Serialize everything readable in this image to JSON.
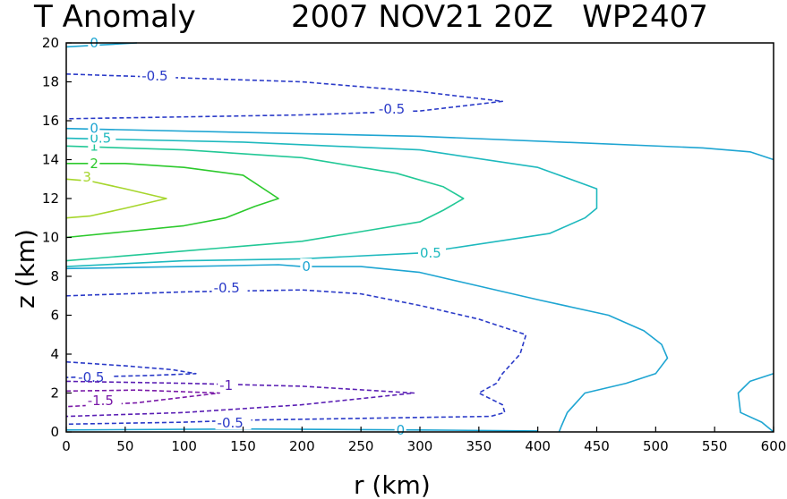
{
  "chart_data": {
    "type": "contour",
    "title_left": "T Anomaly",
    "title_right": "2007 NOV21 20Z   WP2407",
    "xlabel": "r (km)",
    "ylabel": "z (km)",
    "xlim": [
      0,
      600
    ],
    "ylim": [
      0,
      20
    ],
    "xticks": [
      0,
      50,
      100,
      150,
      200,
      250,
      300,
      350,
      400,
      450,
      500,
      550,
      600
    ],
    "yticks": [
      0,
      2,
      4,
      6,
      8,
      10,
      12,
      14,
      16,
      18,
      20
    ],
    "contours": [
      {
        "level": "3",
        "color": "#a6d62c",
        "dashed": false,
        "label_at": [
          14,
          13.1
        ],
        "points": [
          [
            0,
            13.0
          ],
          [
            20,
            12.9
          ],
          [
            50,
            12.5
          ],
          [
            85,
            12.0
          ],
          [
            50,
            11.5
          ],
          [
            20,
            11.1
          ],
          [
            0,
            11.0
          ]
        ]
      },
      {
        "level": "2",
        "color": "#2cc92c",
        "dashed": false,
        "label_at": [
          20,
          13.8
        ],
        "points": [
          [
            0,
            13.8
          ],
          [
            50,
            13.8
          ],
          [
            100,
            13.6
          ],
          [
            150,
            13.2
          ],
          [
            180,
            12.0
          ],
          [
            160,
            11.6
          ],
          [
            135,
            11.0
          ],
          [
            100,
            10.6
          ],
          [
            50,
            10.3
          ],
          [
            0,
            10.0
          ]
        ]
      },
      {
        "level": "1",
        "color": "#22c896",
        "dashed": false,
        "label_at": [
          20,
          14.7
        ],
        "points": [
          [
            0,
            14.7
          ],
          [
            100,
            14.5
          ],
          [
            200,
            14.1
          ],
          [
            280,
            13.3
          ],
          [
            320,
            12.6
          ],
          [
            337,
            12.0
          ],
          [
            320,
            11.4
          ],
          [
            300,
            10.8
          ],
          [
            250,
            10.3
          ],
          [
            200,
            9.8
          ],
          [
            100,
            9.3
          ],
          [
            0,
            8.8
          ]
        ]
      },
      {
        "level": "0.5",
        "color": "#1eb9be",
        "dashed": false,
        "label_at": [
          20,
          15.1
        ],
        "points": [
          [
            0,
            15.1
          ],
          [
            150,
            14.9
          ],
          [
            300,
            14.5
          ],
          [
            400,
            13.6
          ],
          [
            450,
            12.5
          ],
          [
            450,
            11.5
          ],
          [
            440,
            11.0
          ],
          [
            410,
            10.2
          ],
          [
            300,
            9.2
          ],
          [
            200,
            8.9
          ],
          [
            100,
            8.8
          ],
          [
            0,
            8.5
          ]
        ]
      },
      {
        "level": "0.5",
        "color": "#1eb9be",
        "dashed": false,
        "label_at": [
          300,
          9.2
        ],
        "label_only": true,
        "points": []
      },
      {
        "level": "0",
        "color": "#1ea5d2",
        "dashed": false,
        "label_at": [
          20,
          15.6
        ],
        "points": [
          [
            0,
            15.6
          ],
          [
            300,
            15.2
          ],
          [
            540,
            14.6
          ],
          [
            580,
            14.4
          ],
          [
            600,
            14.0
          ]
        ]
      },
      {
        "level": "0",
        "color": "#1ea5d2",
        "dashed": false,
        "label_at": [
          200,
          8.5
        ],
        "points": [
          [
            0,
            8.4
          ],
          [
            100,
            8.5
          ],
          [
            180,
            8.6
          ],
          [
            200,
            8.5
          ],
          [
            250,
            8.5
          ],
          [
            300,
            8.2
          ],
          [
            350,
            7.5
          ],
          [
            400,
            6.8
          ],
          [
            460,
            6.0
          ],
          [
            490,
            5.2
          ],
          [
            505,
            4.5
          ],
          [
            510,
            3.8
          ],
          [
            500,
            3.0
          ],
          [
            475,
            2.5
          ],
          [
            440,
            2.0
          ],
          [
            425,
            1.0
          ],
          [
            420,
            0.3
          ],
          [
            418,
            0.0
          ]
        ]
      },
      {
        "level": "0",
        "color": "#1ea5d2",
        "dashed": false,
        "label_at": [
          280,
          0.1
        ],
        "points": [
          [
            0,
            0.1
          ],
          [
            150,
            0.15
          ],
          [
            300,
            0.1
          ],
          [
            400,
            0.05
          ]
        ]
      },
      {
        "level": "0",
        "color": "#1ea5d2",
        "dashed": false,
        "label_at": [
          20,
          20.0
        ],
        "points": [
          [
            0,
            19.8
          ],
          [
            30,
            19.9
          ],
          [
            60,
            20.0
          ]
        ]
      },
      {
        "level": "0",
        "color": "#1ea5d2",
        "dashed": false,
        "label_at": [
          560,
          1.5
        ],
        "label_only": false,
        "hide_label": true,
        "points": [
          [
            600,
            3.0
          ],
          [
            580,
            2.6
          ],
          [
            570,
            2.0
          ],
          [
            572,
            1.0
          ],
          [
            590,
            0.5
          ],
          [
            600,
            0.0
          ]
        ]
      },
      {
        "level": "-0.5",
        "color": "#2a3ac8",
        "dashed": true,
        "label_at": [
          64,
          18.3
        ],
        "points": [
          [
            0,
            18.4
          ],
          [
            100,
            18.2
          ],
          [
            200,
            18.0
          ],
          [
            300,
            17.5
          ],
          [
            370,
            17.0
          ],
          [
            300,
            16.5
          ],
          [
            200,
            16.3
          ],
          [
            100,
            16.2
          ],
          [
            0,
            16.1
          ]
        ]
      },
      {
        "level": "-0.5",
        "color": "#2a3ac8",
        "dashed": true,
        "label_at": [
          265,
          16.6
        ],
        "label_only": true,
        "points": []
      },
      {
        "level": "-0.5",
        "color": "#2a3ac8",
        "dashed": true,
        "label_at": [
          125,
          7.4
        ],
        "points": [
          [
            0,
            7.0
          ],
          [
            100,
            7.2
          ],
          [
            200,
            7.3
          ],
          [
            250,
            7.1
          ],
          [
            300,
            6.5
          ],
          [
            350,
            5.8
          ],
          [
            390,
            5.0
          ],
          [
            385,
            4.0
          ],
          [
            370,
            3.0
          ],
          [
            365,
            2.5
          ],
          [
            350,
            2.0
          ],
          [
            370,
            1.4
          ],
          [
            372,
            1.0
          ],
          [
            360,
            0.8
          ],
          [
            250,
            0.7
          ],
          [
            150,
            0.6
          ],
          [
            100,
            0.5
          ],
          [
            0,
            0.4
          ]
        ]
      },
      {
        "level": "-0.5",
        "color": "#2a3ac8",
        "dashed": true,
        "label_at": [
          10,
          2.8
        ],
        "points": [
          [
            0,
            3.6
          ],
          [
            50,
            3.4
          ],
          [
            90,
            3.2
          ],
          [
            110,
            3.0
          ],
          [
            70,
            2.9
          ],
          [
            0,
            2.8
          ]
        ]
      },
      {
        "level": "-0.5",
        "color": "#2a3ac8",
        "dashed": true,
        "label_at": [
          128,
          0.45
        ],
        "label_only": true,
        "points": []
      },
      {
        "level": "-1",
        "color": "#5a1eb4",
        "dashed": true,
        "label_at": [
          130,
          2.4
        ],
        "points": [
          [
            0,
            2.6
          ],
          [
            100,
            2.5
          ],
          [
            200,
            2.35
          ],
          [
            295,
            2.0
          ],
          [
            200,
            1.4
          ],
          [
            100,
            1.0
          ],
          [
            0,
            0.8
          ]
        ]
      },
      {
        "level": "-1.5",
        "color": "#7a1aa8",
        "dashed": true,
        "label_at": [
          18,
          1.6
        ],
        "points": [
          [
            0,
            2.1
          ],
          [
            60,
            2.15
          ],
          [
            130,
            2.0
          ],
          [
            60,
            1.5
          ],
          [
            0,
            1.3
          ]
        ]
      }
    ]
  }
}
